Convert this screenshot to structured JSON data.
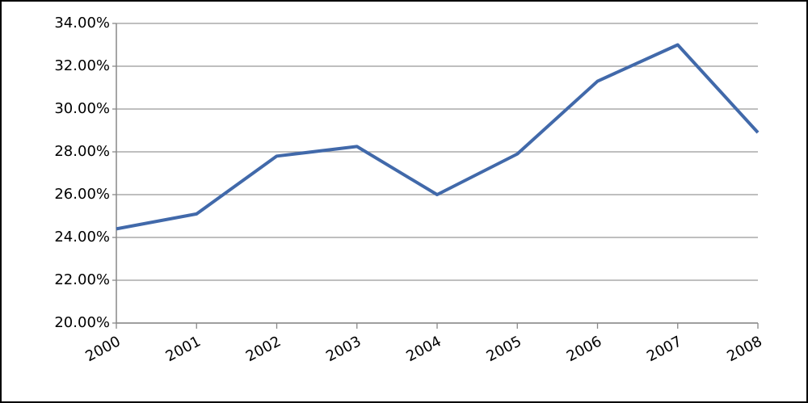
{
  "chart_data": {
    "type": "line",
    "categories": [
      "2000",
      "2001",
      "2002",
      "2003",
      "2004",
      "2005",
      "2006",
      "2007",
      "2008"
    ],
    "values": [
      24.4,
      25.1,
      27.8,
      28.25,
      26.0,
      27.9,
      31.3,
      33.0,
      28.9
    ],
    "color": "#4169aa",
    "ylim": [
      20,
      34
    ],
    "yticks": [
      {
        "value": 20,
        "label": "20.00%"
      },
      {
        "value": 22,
        "label": "22.00%"
      },
      {
        "value": 24,
        "label": "24.00%"
      },
      {
        "value": 26,
        "label": "26.00%"
      },
      {
        "value": 28,
        "label": "28.00%"
      },
      {
        "value": 30,
        "label": "30.00%"
      },
      {
        "value": 32,
        "label": "32.00%"
      },
      {
        "value": 34,
        "label": "34.00%"
      }
    ],
    "grid": true
  }
}
